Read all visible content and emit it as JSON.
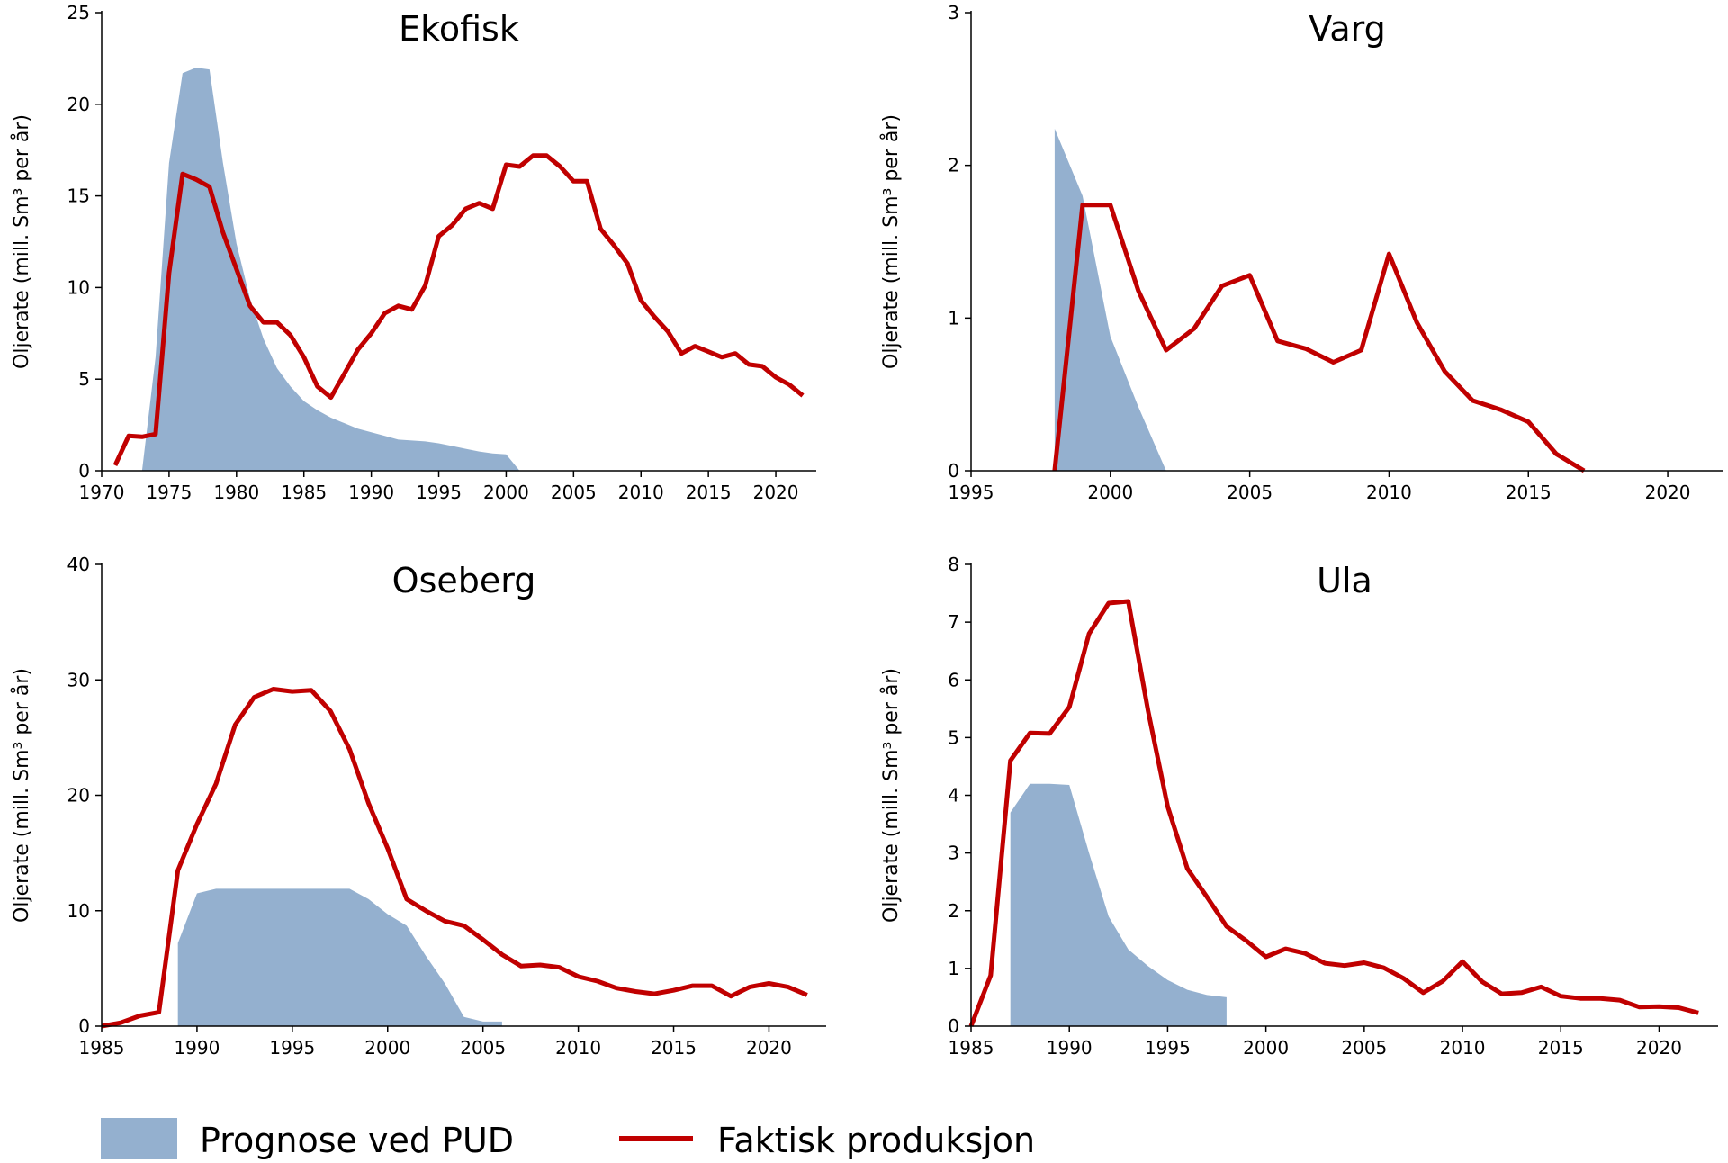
{
  "colors": {
    "forecast": "#94B0CF",
    "actual": "#C00000",
    "axis": "#000000"
  },
  "legend": {
    "forecast_label": "Prognose ved PUD",
    "actual_label": "Faktisk produksjon",
    "placement": "bottom"
  },
  "chart_data": [
    {
      "type": "line",
      "title": "Ekofisk",
      "ylabel": "Oljerate (mill. Sm³ per år)",
      "xlabel": "",
      "xlim": [
        1970,
        2023
      ],
      "ylim": [
        0,
        25
      ],
      "xticks": [
        1970,
        1975,
        1980,
        1985,
        1990,
        1995,
        2000,
        2005,
        2010,
        2015,
        2020
      ],
      "yticks": [
        0,
        5,
        10,
        15,
        20,
        25
      ],
      "series": [
        {
          "name": "Prognose ved PUD",
          "kind": "area",
          "x": [
            1973,
            1974,
            1975,
            1976,
            1977,
            1978,
            1979,
            1980,
            1981,
            1982,
            1983,
            1984,
            1985,
            1986,
            1987,
            1988,
            1989,
            1990,
            1991,
            1992,
            1993,
            1994,
            1995,
            1996,
            1997,
            1998,
            1999,
            2000,
            2001
          ],
          "y": [
            0,
            6.2,
            16.8,
            21.7,
            22.0,
            21.9,
            16.8,
            12.4,
            9.4,
            7.2,
            5.6,
            4.6,
            3.8,
            3.3,
            2.9,
            2.6,
            2.3,
            2.1,
            1.9,
            1.7,
            1.65,
            1.6,
            1.5,
            1.35,
            1.2,
            1.05,
            0.95,
            0.9,
            0
          ]
        },
        {
          "name": "Faktisk produksjon",
          "kind": "line",
          "x": [
            1971,
            1972,
            1973,
            1974,
            1975,
            1976,
            1977,
            1978,
            1979,
            1980,
            1981,
            1982,
            1983,
            1984,
            1985,
            1986,
            1987,
            1988,
            1989,
            1990,
            1991,
            1992,
            1993,
            1994,
            1995,
            1996,
            1997,
            1998,
            1999,
            2000,
            2001,
            2002,
            2003,
            2004,
            2005,
            2006,
            2007,
            2008,
            2009,
            2010,
            2011,
            2012,
            2013,
            2014,
            2015,
            2016,
            2017,
            2018,
            2019,
            2020,
            2021,
            2022
          ],
          "y": [
            0.3,
            1.9,
            1.85,
            2.0,
            10.8,
            16.2,
            15.9,
            15.5,
            13.0,
            11.0,
            9.0,
            8.1,
            8.1,
            7.4,
            6.2,
            4.6,
            4.0,
            5.3,
            6.6,
            7.5,
            8.6,
            9.0,
            8.8,
            10.1,
            12.8,
            13.4,
            14.3,
            14.6,
            14.3,
            16.7,
            16.6,
            17.2,
            17.2,
            16.6,
            15.8,
            15.8,
            13.2,
            12.3,
            11.3,
            9.3,
            8.4,
            7.6,
            6.4,
            6.8,
            6.5,
            6.2,
            6.4,
            5.8,
            5.7,
            5.1,
            4.7,
            4.1
          ]
        }
      ]
    },
    {
      "type": "line",
      "title": "Varg",
      "ylabel": "Oljerate (mill. Sm³ per år)",
      "xlabel": "",
      "xlim": [
        1995,
        2022
      ],
      "ylim": [
        0,
        3
      ],
      "xticks": [
        1995,
        2000,
        2005,
        2010,
        2015,
        2020
      ],
      "yticks": [
        0,
        1,
        2,
        3
      ],
      "series": [
        {
          "name": "Prognose ved PUD",
          "kind": "area",
          "x": [
            1998,
            1999,
            2000,
            2001,
            2002
          ],
          "y": [
            2.24,
            1.8,
            0.88,
            0.42,
            0
          ]
        },
        {
          "name": "Faktisk produksjon",
          "kind": "line",
          "x": [
            1998,
            1999,
            2000,
            2001,
            2002,
            2003,
            2004,
            2005,
            2006,
            2007,
            2008,
            2009,
            2010,
            2011,
            2012,
            2013,
            2014,
            2015,
            2016,
            2017
          ],
          "y": [
            0,
            1.74,
            1.74,
            1.18,
            0.79,
            0.93,
            1.21,
            1.28,
            0.85,
            0.8,
            0.71,
            0.79,
            1.42,
            0.97,
            0.65,
            0.46,
            0.4,
            0.32,
            0.11,
            0
          ]
        }
      ]
    },
    {
      "type": "line",
      "title": "Oseberg",
      "ylabel": "Oljerate (mill. Sm³ per år)",
      "xlabel": "",
      "xlim": [
        1985,
        2023
      ],
      "ylim": [
        0,
        40
      ],
      "xticks": [
        1985,
        1990,
        1995,
        2000,
        2005,
        2010,
        2015,
        2020
      ],
      "yticks": [
        0,
        10,
        20,
        30,
        40
      ],
      "series": [
        {
          "name": "Prognose ved PUD",
          "kind": "area",
          "x": [
            1989,
            1990,
            1991,
            1992,
            1993,
            1994,
            1995,
            1996,
            1997,
            1998,
            1999,
            2000,
            2001,
            2002,
            2003,
            2004,
            2005,
            2006
          ],
          "y": [
            7.2,
            11.5,
            11.9,
            11.9,
            11.9,
            11.9,
            11.9,
            11.9,
            11.9,
            11.9,
            11.0,
            9.7,
            8.7,
            6.1,
            3.7,
            0.8,
            0.4,
            0.4
          ]
        },
        {
          "name": "Faktisk produksjon",
          "kind": "line",
          "x": [
            1985,
            1986,
            1987,
            1988,
            1989,
            1990,
            1991,
            1992,
            1993,
            1994,
            1995,
            1996,
            1997,
            1998,
            1999,
            2000,
            2001,
            2002,
            2003,
            2004,
            2005,
            2006,
            2007,
            2008,
            2009,
            2010,
            2011,
            2012,
            2013,
            2014,
            2015,
            2016,
            2017,
            2018,
            2019,
            2020,
            2021,
            2022
          ],
          "y": [
            0,
            0.3,
            0.9,
            1.2,
            13.5,
            17.5,
            21.0,
            26.1,
            28.5,
            29.2,
            29.0,
            29.1,
            27.3,
            24.0,
            19.3,
            15.4,
            11.0,
            10.0,
            9.1,
            8.7,
            7.5,
            6.2,
            5.2,
            5.3,
            5.1,
            4.3,
            3.9,
            3.3,
            3.0,
            2.8,
            3.1,
            3.5,
            3.5,
            2.6,
            3.4,
            3.7,
            3.4,
            2.7
          ]
        }
      ]
    },
    {
      "type": "line",
      "title": "Ula",
      "ylabel": "Oljerate (mill. Sm³ per år)",
      "xlabel": "",
      "xlim": [
        1985,
        2023
      ],
      "ylim": [
        0,
        8
      ],
      "xticks": [
        1985,
        1990,
        1995,
        2000,
        2005,
        2010,
        2015,
        2020
      ],
      "yticks": [
        0,
        1,
        2,
        3,
        4,
        5,
        6,
        7,
        8
      ],
      "series": [
        {
          "name": "Prognose ved PUD",
          "kind": "area",
          "x": [
            1987,
            1988,
            1989,
            1990,
            1991,
            1992,
            1993,
            1994,
            1995,
            1996,
            1997,
            1998
          ],
          "y": [
            3.7,
            4.2,
            4.2,
            4.18,
            3.0,
            1.9,
            1.33,
            1.04,
            0.8,
            0.63,
            0.54,
            0.5
          ]
        },
        {
          "name": "Faktisk produksjon",
          "kind": "line",
          "x": [
            1985,
            1986,
            1987,
            1988,
            1989,
            1990,
            1991,
            1992,
            1993,
            1994,
            1995,
            1996,
            1997,
            1998,
            1999,
            2000,
            2001,
            2002,
            2003,
            2004,
            2005,
            2006,
            2007,
            2008,
            2009,
            2010,
            2011,
            2012,
            2013,
            2014,
            2015,
            2016,
            2017,
            2018,
            2019,
            2020,
            2021,
            2022
          ],
          "y": [
            0,
            0.88,
            4.6,
            5.08,
            5.07,
            5.53,
            6.8,
            7.33,
            7.36,
            5.47,
            3.81,
            2.73,
            2.24,
            1.73,
            1.48,
            1.2,
            1.34,
            1.26,
            1.09,
            1.05,
            1.1,
            1.01,
            0.83,
            0.58,
            0.78,
            1.12,
            0.77,
            0.56,
            0.58,
            0.68,
            0.52,
            0.48,
            0.48,
            0.45,
            0.33,
            0.34,
            0.32,
            0.23
          ]
        }
      ]
    }
  ]
}
